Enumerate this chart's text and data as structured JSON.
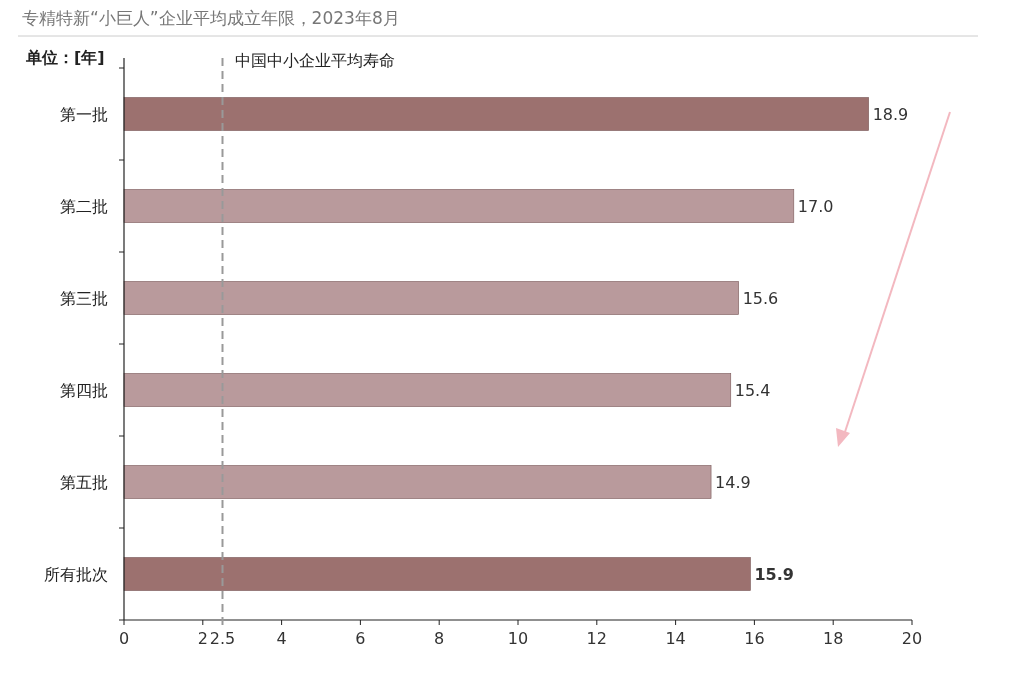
{
  "chart_data": {
    "type": "bar",
    "orientation": "horizontal",
    "title": "专精特新“小巨人”企业平均成立年限，2023年8月",
    "ylabel": "单位：[年]",
    "categories": [
      "第一批",
      "第二批",
      "第三批",
      "第四批",
      "第五批",
      "所有批次"
    ],
    "values": [
      18.9,
      17.0,
      15.6,
      15.4,
      14.9,
      15.9
    ],
    "value_labels": [
      "18.9",
      "17.0",
      "15.6",
      "15.4",
      "14.9",
      "15.9"
    ],
    "colors": [
      "#9c716f",
      "#b99a9c",
      "#b99a9c",
      "#b99a9c",
      "#b99a9c",
      "#9c716f"
    ],
    "xlim": [
      0,
      20
    ],
    "xticks": [
      0,
      2,
      2.5,
      4,
      6,
      8,
      10,
      12,
      14,
      16,
      18,
      20
    ],
    "ref_lines": [
      {
        "axis": "x",
        "value": 2.5,
        "label": "中国中小企业平均寿命",
        "color": "#999999",
        "line_style": "dashed"
      }
    ],
    "grid": false
  }
}
